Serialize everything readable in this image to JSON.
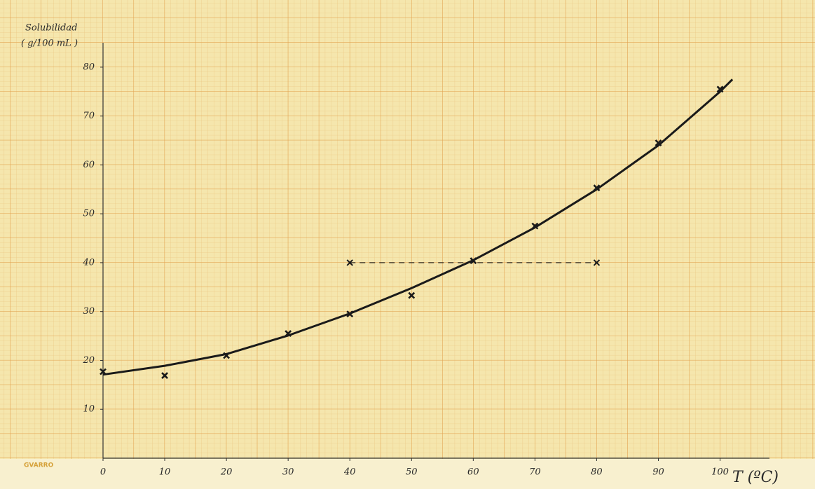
{
  "chart_data": {
    "type": "scatter",
    "y_label_line1": "Solubilidad",
    "y_label_line2": "( g/100 mL )",
    "x_label": "T (ºC)",
    "brand": "GVARRO",
    "xlim": [
      0,
      108
    ],
    "ylim": [
      0,
      85
    ],
    "xticks": [
      0,
      10,
      20,
      30,
      40,
      50,
      60,
      70,
      80,
      90,
      100
    ],
    "yticks": [
      10,
      20,
      30,
      40,
      50,
      60,
      70,
      80
    ],
    "color": "#1a1a1a",
    "points": {
      "x": [
        0,
        10,
        20,
        30,
        40,
        50,
        60,
        70,
        80,
        90,
        100
      ],
      "y": [
        17.7,
        16.9,
        21,
        25.5,
        29.5,
        33.3,
        40.4,
        47.5,
        55.3,
        64.5,
        75.5
      ]
    },
    "fit_curve": {
      "x": [
        0,
        10,
        20,
        30,
        40,
        50,
        60,
        70,
        80,
        90,
        100,
        102
      ],
      "y": [
        17.1,
        18.9,
        21.3,
        25.1,
        29.6,
        34.8,
        40.5,
        47.2,
        55,
        64,
        75,
        77.5
      ]
    },
    "reference": {
      "x": [
        40,
        80
      ],
      "y": [
        40,
        40
      ]
    }
  }
}
